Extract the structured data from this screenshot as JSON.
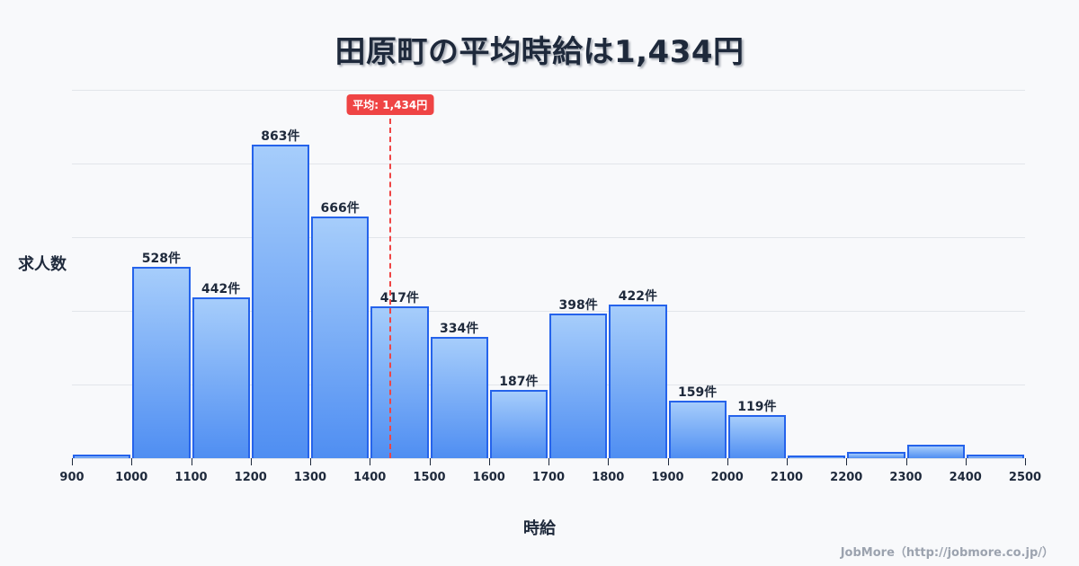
{
  "title": "田原町の平均時給は1,434円",
  "ylabel": "求人数",
  "xlabel": "時給",
  "credit": "JobMore（http://jobmore.co.jp/）",
  "mean": {
    "value": 1434,
    "label": "平均: 1,434円",
    "color": "#ef4444"
  },
  "colors": {
    "bar_border": "#2563eb",
    "bar_top": "#a6cdfb",
    "bar_bottom": "#4f8ef2",
    "text": "#1e293b"
  },
  "chart_data": {
    "type": "bar",
    "title": "田原町の平均時給は1,434円",
    "xlabel": "時給",
    "ylabel": "求人数",
    "bin_edges": [
      900,
      1000,
      1100,
      1200,
      1300,
      1400,
      1500,
      1600,
      1700,
      1800,
      1900,
      2000,
      2100,
      2200,
      2300,
      2400,
      2500
    ],
    "categories": [
      "900-1000",
      "1000-1100",
      "1100-1200",
      "1200-1300",
      "1300-1400",
      "1400-1500",
      "1500-1600",
      "1600-1700",
      "1700-1800",
      "1800-1900",
      "1900-2000",
      "2000-2100",
      "2100-2200",
      "2200-2300",
      "2300-2400",
      "2400-2500"
    ],
    "values": [
      10,
      528,
      442,
      863,
      666,
      417,
      334,
      187,
      398,
      422,
      159,
      119,
      7,
      17,
      37,
      10
    ],
    "labels": [
      "",
      "528件",
      "442件",
      "863件",
      "666件",
      "417件",
      "334件",
      "187件",
      "398件",
      "422件",
      "159件",
      "119件",
      "",
      "",
      "",
      ""
    ],
    "xticks": [
      "900",
      "1000",
      "1100",
      "1200",
      "1300",
      "1400",
      "1500",
      "1600",
      "1700",
      "1800",
      "1900",
      "2000",
      "2100",
      "2200",
      "2300",
      "2400",
      "2500"
    ],
    "xlim": [
      900,
      2500
    ],
    "ylim": [
      0,
      1014
    ],
    "grid": true,
    "annotations": [
      {
        "type": "vline",
        "x": 1434,
        "label": "平均: 1,434円",
        "style": "dashed",
        "color": "#ef4444"
      }
    ]
  }
}
